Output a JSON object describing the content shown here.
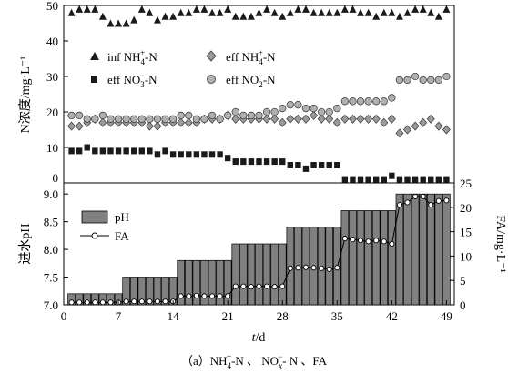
{
  "chart_data": [
    {
      "type": "scatter",
      "panel": "top",
      "ylabel": "N浓度/mg·L⁻¹",
      "ylim": [
        0,
        50
      ],
      "yticks": [
        0,
        10,
        20,
        30,
        40,
        50
      ],
      "legend_placement": "inside-top-left",
      "series": [
        {
          "name": "inf NH₄⁺-N",
          "marker": "triangle",
          "x": [
            1,
            2,
            3,
            4,
            5,
            6,
            7,
            8,
            9,
            10,
            11,
            12,
            13,
            14,
            15,
            16,
            17,
            18,
            19,
            20,
            21,
            22,
            23,
            24,
            25,
            26,
            27,
            28,
            29,
            30,
            31,
            32,
            33,
            34,
            35,
            36,
            37,
            38,
            39,
            40,
            41,
            42,
            43,
            44,
            45,
            46,
            47,
            48,
            49
          ],
          "values": [
            48,
            49,
            49,
            49,
            47,
            45,
            45,
            45,
            46,
            49,
            48,
            46,
            47,
            47,
            48,
            48,
            49,
            49,
            48,
            48,
            49,
            47,
            47,
            47,
            48,
            49,
            48,
            47,
            48,
            49,
            49,
            48,
            48,
            48,
            48,
            49,
            49,
            48,
            48,
            47,
            48,
            48,
            47,
            48,
            49,
            49,
            48,
            47,
            49
          ]
        },
        {
          "name": "eff NH₄⁺-N",
          "marker": "diamond",
          "x": [
            1,
            2,
            3,
            4,
            5,
            6,
            7,
            8,
            9,
            10,
            11,
            12,
            13,
            14,
            15,
            16,
            17,
            18,
            19,
            20,
            21,
            22,
            23,
            24,
            25,
            26,
            27,
            28,
            29,
            30,
            31,
            32,
            33,
            34,
            35,
            36,
            37,
            38,
            39,
            40,
            41,
            42,
            43,
            44,
            45,
            46,
            47,
            48,
            49
          ],
          "values": [
            16,
            16,
            17,
            18,
            17,
            17,
            17,
            17,
            17,
            17,
            16,
            16,
            17,
            17,
            17,
            17,
            17,
            18,
            18,
            18,
            19,
            18,
            18,
            18,
            18,
            18,
            18,
            17,
            18,
            18,
            18,
            19,
            18,
            18,
            17,
            18,
            18,
            18,
            18,
            18,
            17,
            18,
            14,
            15,
            16,
            17,
            18,
            16,
            15
          ]
        },
        {
          "name": "eff NO₃⁻-N",
          "marker": "square",
          "x": [
            1,
            2,
            3,
            4,
            5,
            6,
            7,
            8,
            9,
            10,
            11,
            12,
            13,
            14,
            15,
            16,
            17,
            18,
            19,
            20,
            21,
            22,
            23,
            24,
            25,
            26,
            27,
            28,
            29,
            30,
            31,
            32,
            33,
            34,
            35,
            36,
            37,
            38,
            39,
            40,
            41,
            42,
            43,
            44,
            45,
            46,
            47,
            48,
            49
          ],
          "values": [
            9,
            9,
            10,
            9,
            9,
            9,
            9,
            9,
            9,
            9,
            9,
            8,
            9,
            8,
            8,
            8,
            8,
            8,
            8,
            8,
            7,
            6,
            6,
            6,
            6,
            6,
            6,
            6,
            5,
            5,
            4,
            5,
            5,
            5,
            5,
            1,
            1,
            1,
            1,
            1,
            1,
            2,
            1,
            1,
            1,
            1,
            1,
            1,
            1
          ]
        },
        {
          "name": "eff NO₂⁻-N",
          "marker": "circle",
          "x": [
            1,
            2,
            3,
            4,
            5,
            6,
            7,
            8,
            9,
            10,
            11,
            12,
            13,
            14,
            15,
            16,
            17,
            18,
            19,
            20,
            21,
            22,
            23,
            24,
            25,
            26,
            27,
            28,
            29,
            30,
            31,
            32,
            33,
            34,
            35,
            36,
            37,
            38,
            39,
            40,
            41,
            42,
            43,
            44,
            45,
            46,
            47,
            48,
            49
          ],
          "values": [
            19,
            19,
            18,
            18,
            19,
            18,
            18,
            18,
            18,
            18,
            18,
            18,
            18,
            18,
            19,
            19,
            18,
            18,
            19,
            18,
            19,
            20,
            19,
            19,
            19,
            20,
            20,
            21,
            22,
            22,
            21,
            21,
            20,
            20,
            21,
            23,
            23,
            23,
            23,
            23,
            23,
            24,
            29,
            29,
            30,
            29,
            29,
            29,
            30
          ]
        }
      ]
    },
    {
      "type": "bar",
      "panel": "bottom",
      "xlabel": "t/d",
      "ylabel": "进水pH",
      "ylabel_right": "FA/mg·L⁻¹",
      "xlim": [
        0,
        50
      ],
      "xticks": [
        0,
        7,
        14,
        21,
        28,
        35,
        42,
        49
      ],
      "ylim": [
        7.0,
        9.2
      ],
      "yticks": [
        7.0,
        7.5,
        8.0,
        8.5,
        9.0
      ],
      "y2lim": [
        0,
        25
      ],
      "y2ticks": [
        0,
        5,
        10,
        15,
        20,
        25
      ],
      "legend_placement": "top-left",
      "series": [
        {
          "name": "pH",
          "type": "bar",
          "x": [
            1,
            2,
            3,
            4,
            5,
            6,
            7,
            8,
            9,
            10,
            11,
            12,
            13,
            14,
            15,
            16,
            17,
            18,
            19,
            20,
            21,
            22,
            23,
            24,
            25,
            26,
            27,
            28,
            29,
            30,
            31,
            32,
            33,
            34,
            35,
            36,
            37,
            38,
            39,
            40,
            41,
            42,
            43,
            44,
            45,
            46,
            47,
            48,
            49
          ],
          "values": [
            7.2,
            7.2,
            7.2,
            7.2,
            7.2,
            7.2,
            7.2,
            7.5,
            7.5,
            7.5,
            7.5,
            7.5,
            7.5,
            7.5,
            7.8,
            7.8,
            7.8,
            7.8,
            7.8,
            7.8,
            7.8,
            8.1,
            8.1,
            8.1,
            8.1,
            8.1,
            8.1,
            8.1,
            8.4,
            8.4,
            8.4,
            8.4,
            8.4,
            8.4,
            8.4,
            8.7,
            8.7,
            8.7,
            8.7,
            8.7,
            8.7,
            8.7,
            9.0,
            9.0,
            9.0,
            9.0,
            9.0,
            9.0,
            9.0
          ]
        },
        {
          "name": "FA",
          "type": "line",
          "axis": "right",
          "marker": "open-circle",
          "x": [
            1,
            2,
            3,
            4,
            5,
            6,
            7,
            8,
            9,
            10,
            11,
            12,
            13,
            14,
            15,
            16,
            17,
            18,
            19,
            20,
            21,
            22,
            23,
            24,
            25,
            26,
            27,
            28,
            29,
            30,
            31,
            32,
            33,
            34,
            35,
            36,
            37,
            38,
            39,
            40,
            41,
            42,
            43,
            44,
            45,
            46,
            47,
            48,
            49
          ],
          "values": [
            0.5,
            0.5,
            0.5,
            0.5,
            0.5,
            0.5,
            0.5,
            0.7,
            0.7,
            0.7,
            0.7,
            0.7,
            0.7,
            0.7,
            1.8,
            1.8,
            1.9,
            1.8,
            1.8,
            1.8,
            1.8,
            3.8,
            3.8,
            3.7,
            3.8,
            3.8,
            3.7,
            3.8,
            7.5,
            7.6,
            7.7,
            7.6,
            7.5,
            7.3,
            7.6,
            13.6,
            13.4,
            13.2,
            13.0,
            13.2,
            13.0,
            12.5,
            20.5,
            21.0,
            22.2,
            22.2,
            20.5,
            21.3,
            21.4
          ]
        }
      ]
    }
  ],
  "legend_top": {
    "inf_nh4": [
      "inf NH",
      "4",
      "+",
      "-N"
    ],
    "eff_nh4": [
      "eff NH",
      "4",
      "+",
      "-N"
    ],
    "eff_no3": [
      "eff NO",
      "3",
      "−",
      "-N"
    ],
    "eff_no2": [
      "eff NO",
      "2",
      "−",
      "-N"
    ]
  },
  "legend_bottom": {
    "ph": "pH",
    "fa": "FA"
  },
  "axis_labels": {
    "top_y": "N浓度/mg·L⁻¹",
    "bottom_y": "进水pH",
    "right_y": "FA/mg·L⁻¹",
    "x_var": "t",
    "x_unit": "/d"
  },
  "caption": {
    "prefix": "（a）NH",
    "nh_sub": "4",
    "nh_sup": "+",
    "mid1": "-N 、 NO",
    "no_sub": "x",
    "no_sup": "−",
    "mid2": "- N 、FA"
  },
  "colors": {
    "bar_fill": "#808080",
    "marker_fill": "#1a1a1a",
    "diamond_fill": "#9a9a9a",
    "circle_fill": "#b0b0b0",
    "axis": "#000000"
  }
}
